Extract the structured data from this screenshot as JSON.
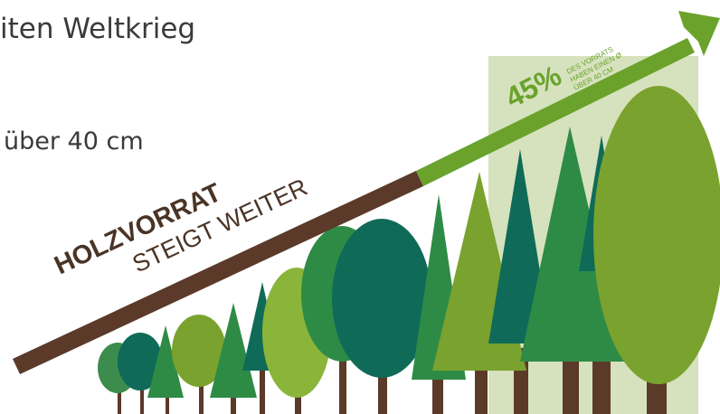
{
  "heading": "iten Weltkrieg",
  "subtext": "über 40 cm",
  "arrow": {
    "title": "HOLZVORRAT",
    "subtitle": "STEIGT WEITER"
  },
  "highlight": {
    "value": "45%",
    "note": [
      "DES VORRATS",
      "HABEN EINEN Ø",
      "ÜBER 40 CM"
    ]
  }
}
